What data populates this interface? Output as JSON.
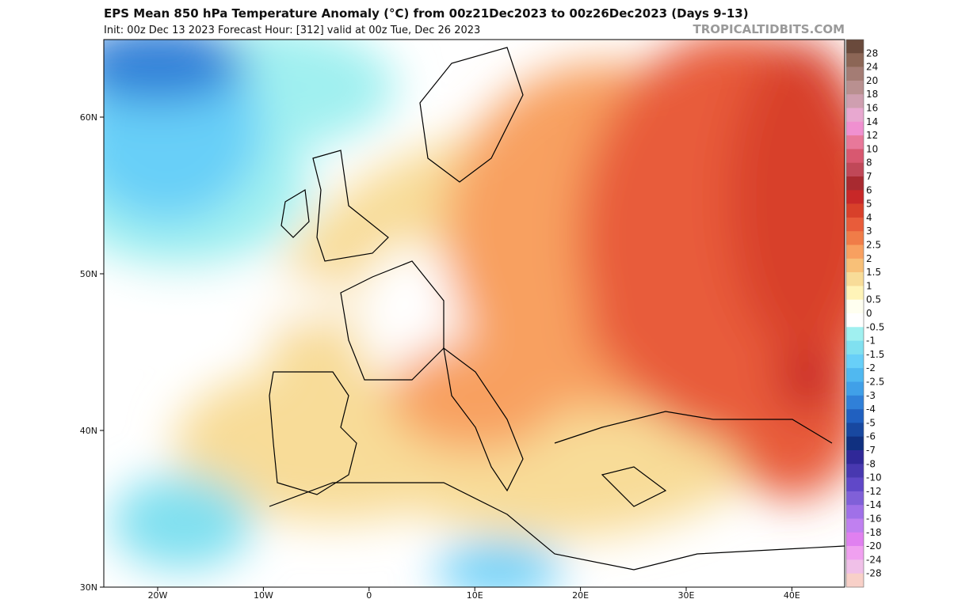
{
  "header": {
    "title": "EPS Mean 850 hPa Temperature Anomaly (°C) from 00z21Dec2023 to 00z26Dec2023 (Days 9-13)",
    "subtitle": "Init: 00z Dec 13 2023   Forecast Hour: [312]   valid at 00z Tue, Dec 26 2023",
    "watermark": "TROPICALTIDBITS.COM"
  },
  "map": {
    "lat_labels": [
      "60N",
      "50N",
      "40N",
      "30N"
    ],
    "lon_labels": [
      "20W",
      "10W",
      "0",
      "10E",
      "20E",
      "30E",
      "40E"
    ]
  },
  "colorbar": {
    "levels": [
      28,
      24,
      20,
      18,
      16,
      14,
      12,
      10,
      8,
      7,
      6,
      5,
      4,
      3,
      2.5,
      2,
      1.5,
      1,
      0.5,
      0,
      -0.5,
      -1,
      -1.5,
      -2,
      -2.5,
      -3,
      -4,
      -5,
      -6,
      -7,
      -8,
      -10,
      -12,
      -14,
      -16,
      -18,
      -20,
      -24,
      -28
    ],
    "colors": [
      "#6a4a3c",
      "#8c6656",
      "#a47c74",
      "#b99090",
      "#cf9fb0",
      "#e8a8d0",
      "#f090d0",
      "#e8789a",
      "#d85870",
      "#c04858",
      "#a82a30",
      "#c82828",
      "#d8402a",
      "#e85c3a",
      "#f07c48",
      "#f8a060",
      "#f8c078",
      "#f8dc98",
      "#fff4b8",
      "#fffff0",
      "#ffffff",
      "#a0f0f0",
      "#80e0f0",
      "#68cff8",
      "#50b8f0",
      "#40a0e8",
      "#3080d8",
      "#2060c0",
      "#1848a0",
      "#103080",
      "#302898",
      "#4838b0",
      "#6048c8",
      "#8060d8",
      "#a070e8",
      "#c080f0",
      "#e080f0",
      "#f0a0f0",
      "#f0c0e8",
      "#f8d0c8"
    ]
  }
}
